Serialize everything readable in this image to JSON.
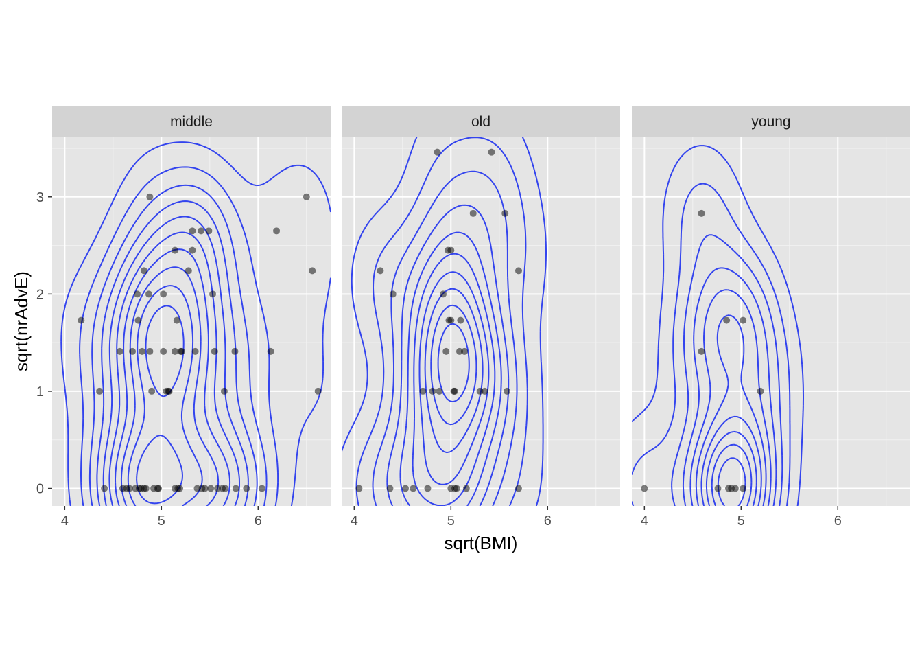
{
  "chart_data": {
    "type": "scatter",
    "facet_by": "age group",
    "xlabel": "sqrt(BMI)",
    "ylabel": "sqrt(nrAdvE)",
    "xlim": [
      3.87,
      6.75
    ],
    "ylim": [
      -0.18,
      3.62
    ],
    "x_ticks": [
      4,
      5,
      6
    ],
    "y_ticks": [
      0,
      1,
      2,
      3
    ],
    "grid": true,
    "point_color": "#000000",
    "point_alpha": 0.5,
    "contour_color": "#3344ee",
    "panel_background": "#e5e5e5",
    "strip_background": "#d3d3d3",
    "facets": [
      {
        "label": "middle",
        "points": [
          [
            4.17,
            1.73
          ],
          [
            4.36,
            1.0
          ],
          [
            4.41,
            0
          ],
          [
            4.57,
            1.41
          ],
          [
            4.6,
            0
          ],
          [
            4.64,
            0
          ],
          [
            4.67,
            0
          ],
          [
            4.7,
            1.41
          ],
          [
            4.73,
            0
          ],
          [
            4.75,
            2.0
          ],
          [
            4.76,
            1.73
          ],
          [
            4.77,
            0
          ],
          [
            4.79,
            0
          ],
          [
            4.8,
            1.41
          ],
          [
            4.82,
            2.24
          ],
          [
            4.82,
            0
          ],
          [
            4.84,
            0
          ],
          [
            4.87,
            2.0
          ],
          [
            4.88,
            3.0
          ],
          [
            4.88,
            1.41
          ],
          [
            4.9,
            1.0
          ],
          [
            4.92,
            0
          ],
          [
            4.96,
            0
          ],
          [
            4.97,
            0
          ],
          [
            5.02,
            2.0
          ],
          [
            5.02,
            1.41
          ],
          [
            5.05,
            1.0
          ],
          [
            5.07,
            1.0
          ],
          [
            5.08,
            1.0
          ],
          [
            5.14,
            2.45
          ],
          [
            5.14,
            1.41
          ],
          [
            5.14,
            0
          ],
          [
            5.16,
            1.73
          ],
          [
            5.17,
            0
          ],
          [
            5.19,
            0
          ],
          [
            5.2,
            1.41
          ],
          [
            5.21,
            1.41
          ],
          [
            5.28,
            2.24
          ],
          [
            5.32,
            2.65
          ],
          [
            5.32,
            2.45
          ],
          [
            5.35,
            1.41
          ],
          [
            5.37,
            0
          ],
          [
            5.41,
            2.65
          ],
          [
            5.42,
            0
          ],
          [
            5.45,
            0
          ],
          [
            5.49,
            2.65
          ],
          [
            5.51,
            0
          ],
          [
            5.53,
            2.0
          ],
          [
            5.55,
            1.41
          ],
          [
            5.58,
            0
          ],
          [
            5.63,
            0
          ],
          [
            5.65,
            1.0
          ],
          [
            5.66,
            0
          ],
          [
            5.76,
            1.41
          ],
          [
            5.77,
            0
          ],
          [
            5.88,
            0
          ],
          [
            6.04,
            0
          ],
          [
            6.13,
            1.41
          ],
          [
            6.19,
            2.65
          ],
          [
            6.5,
            3.0
          ],
          [
            6.56,
            2.24
          ],
          [
            6.62,
            1.0
          ]
        ]
      },
      {
        "label": "old",
        "points": [
          [
            4.05,
            0
          ],
          [
            4.27,
            2.24
          ],
          [
            4.37,
            0
          ],
          [
            4.4,
            2.0
          ],
          [
            4.53,
            0
          ],
          [
            4.61,
            0
          ],
          [
            4.71,
            1.0
          ],
          [
            4.76,
            0
          ],
          [
            4.81,
            1.0
          ],
          [
            4.86,
            3.46
          ],
          [
            4.88,
            1.0
          ],
          [
            4.92,
            2.0
          ],
          [
            4.95,
            1.41
          ],
          [
            4.97,
            2.45
          ],
          [
            4.98,
            1.73
          ],
          [
            5.0,
            2.45
          ],
          [
            5.0,
            1.73
          ],
          [
            5.0,
            0
          ],
          [
            5.03,
            1.0
          ],
          [
            5.04,
            1.0
          ],
          [
            5.04,
            0
          ],
          [
            5.06,
            0
          ],
          [
            5.09,
            1.41
          ],
          [
            5.1,
            1.73
          ],
          [
            5.14,
            1.41
          ],
          [
            5.16,
            0
          ],
          [
            5.23,
            2.83
          ],
          [
            5.3,
            1.0
          ],
          [
            5.35,
            1.0
          ],
          [
            5.42,
            3.46
          ],
          [
            5.56,
            2.83
          ],
          [
            5.58,
            1.0
          ],
          [
            5.7,
            2.24
          ],
          [
            5.7,
            0
          ]
        ]
      },
      {
        "label": "young",
        "points": [
          [
            4.0,
            0
          ],
          [
            4.59,
            2.83
          ],
          [
            4.59,
            1.41
          ],
          [
            4.76,
            0
          ],
          [
            4.85,
            1.73
          ],
          [
            4.87,
            0
          ],
          [
            4.9,
            0
          ],
          [
            4.94,
            0
          ],
          [
            5.02,
            1.73
          ],
          [
            5.02,
            0
          ],
          [
            5.2,
            1.0
          ]
        ]
      }
    ]
  }
}
